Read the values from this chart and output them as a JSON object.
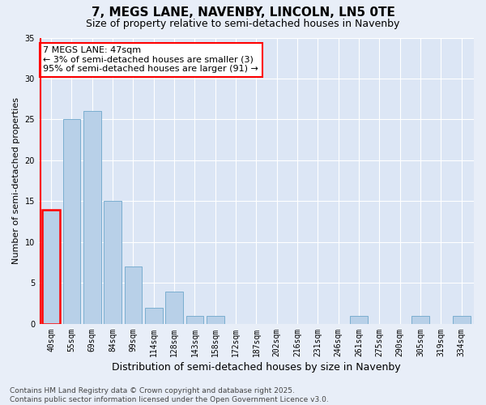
{
  "title1": "7, MEGS LANE, NAVENBY, LINCOLN, LN5 0TE",
  "title2": "Size of property relative to semi-detached houses in Navenby",
  "xlabel": "Distribution of semi-detached houses by size in Navenby",
  "ylabel": "Number of semi-detached properties",
  "categories": [
    "40sqm",
    "55sqm",
    "69sqm",
    "84sqm",
    "99sqm",
    "114sqm",
    "128sqm",
    "143sqm",
    "158sqm",
    "172sqm",
    "187sqm",
    "202sqm",
    "216sqm",
    "231sqm",
    "246sqm",
    "261sqm",
    "275sqm",
    "290sqm",
    "305sqm",
    "319sqm",
    "334sqm"
  ],
  "values": [
    14,
    25,
    26,
    15,
    7,
    2,
    4,
    1,
    1,
    0,
    0,
    0,
    0,
    0,
    0,
    1,
    0,
    0,
    1,
    0,
    1
  ],
  "bar_color": "#b8d0e8",
  "bar_edge_color": "#7aaed0",
  "highlight_bar_index": 0,
  "highlight_edge_color": "red",
  "annotation_text": "7 MEGS LANE: 47sqm\n← 3% of semi-detached houses are smaller (3)\n95% of semi-detached houses are larger (91) →",
  "annotation_box_color": "white",
  "annotation_box_edge_color": "red",
  "vline_color": "red",
  "ylim": [
    0,
    35
  ],
  "yticks": [
    0,
    5,
    10,
    15,
    20,
    25,
    30,
    35
  ],
  "background_color": "#e8eef8",
  "plot_background_color": "#dce6f5",
  "footer": "Contains HM Land Registry data © Crown copyright and database right 2025.\nContains public sector information licensed under the Open Government Licence v3.0.",
  "title1_fontsize": 11,
  "title2_fontsize": 9,
  "xlabel_fontsize": 9,
  "ylabel_fontsize": 8,
  "tick_fontsize": 7,
  "annotation_fontsize": 8,
  "footer_fontsize": 6.5
}
